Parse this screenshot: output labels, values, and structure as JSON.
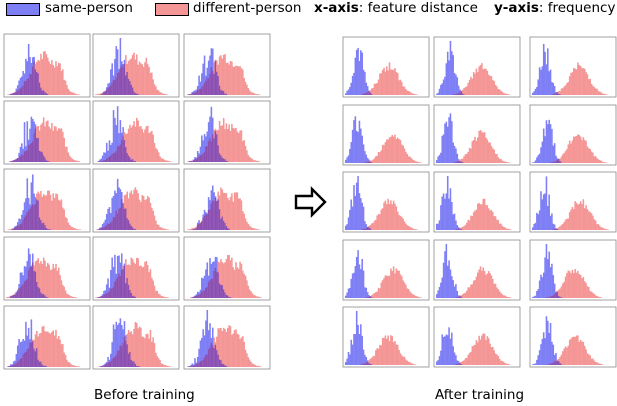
{
  "legend": {
    "same_label": "same-person",
    "diff_label": "different-person",
    "x_key": "x-axis",
    "x_desc": ": feature distance",
    "y_key": "y-axis",
    "y_desc": ": frequency"
  },
  "captions": {
    "before": "Before training",
    "after": "After training"
  },
  "colors": {
    "same": "#7f7ff5",
    "different": "#f59696",
    "overlap": "#8c4fb0"
  },
  "chart_data": [
    {
      "type": "histogram",
      "title": "Before training",
      "xlabel": "feature distance",
      "ylabel": "frequency",
      "rows": 5,
      "cols": 3,
      "series": [
        {
          "name": "same-person",
          "approx_mean_fraction": 0.28,
          "approx_spread": 0.08
        },
        {
          "name": "different-person",
          "approx_mean_fraction": 0.45,
          "approx_spread": 0.15
        }
      ]
    },
    {
      "type": "histogram",
      "title": "After training",
      "xlabel": "feature distance",
      "ylabel": "frequency",
      "rows": 5,
      "cols": 3,
      "series": [
        {
          "name": "same-person",
          "approx_mean_fraction": 0.16,
          "approx_spread": 0.06
        },
        {
          "name": "different-person",
          "approx_mean_fraction": 0.55,
          "approx_spread": 0.12
        }
      ]
    }
  ]
}
